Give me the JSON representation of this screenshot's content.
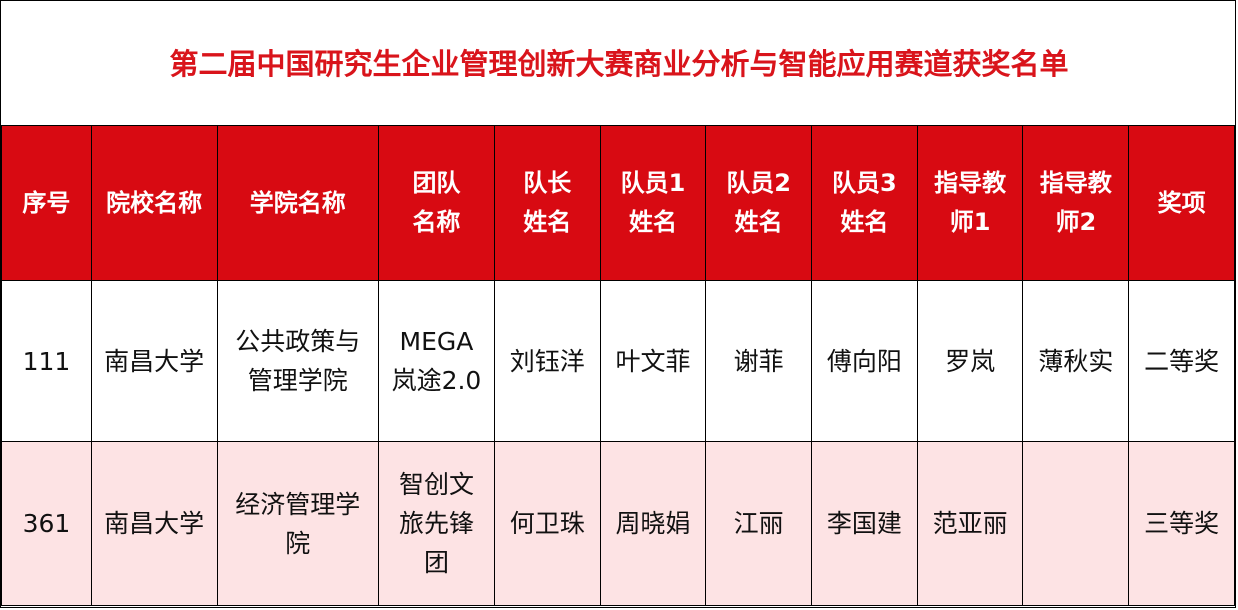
{
  "title": "第二届中国研究生企业管理创新大赛商业分析与智能应用赛道获奖名单",
  "colors": {
    "header_bg": "#d80a12",
    "title_text": "#d9141b",
    "alt_row_bg": "#fde3e4"
  },
  "headers": [
    "序号",
    "院校名称",
    "学院名称",
    "团队\n名称",
    "队长\n姓名",
    "队员1\n姓名",
    "队员2\n姓名",
    "队员3\n姓名",
    "指导教\n师1",
    "指导教\n师2",
    "奖项"
  ],
  "rows": [
    [
      "111",
      "南昌大学",
      "公共政策与\n管理学院",
      "MEGA\n岚途2.0",
      "刘钰洋",
      "叶文菲",
      "谢菲",
      "傅向阳",
      "罗岚",
      "薄秋实",
      "二等奖"
    ],
    [
      "361",
      "南昌大学",
      "经济管理学\n院",
      "智创文\n旅先锋\n团",
      "何卫珠",
      "周晓娟",
      "江丽",
      "李国建",
      "范亚丽",
      "",
      "三等奖"
    ]
  ]
}
